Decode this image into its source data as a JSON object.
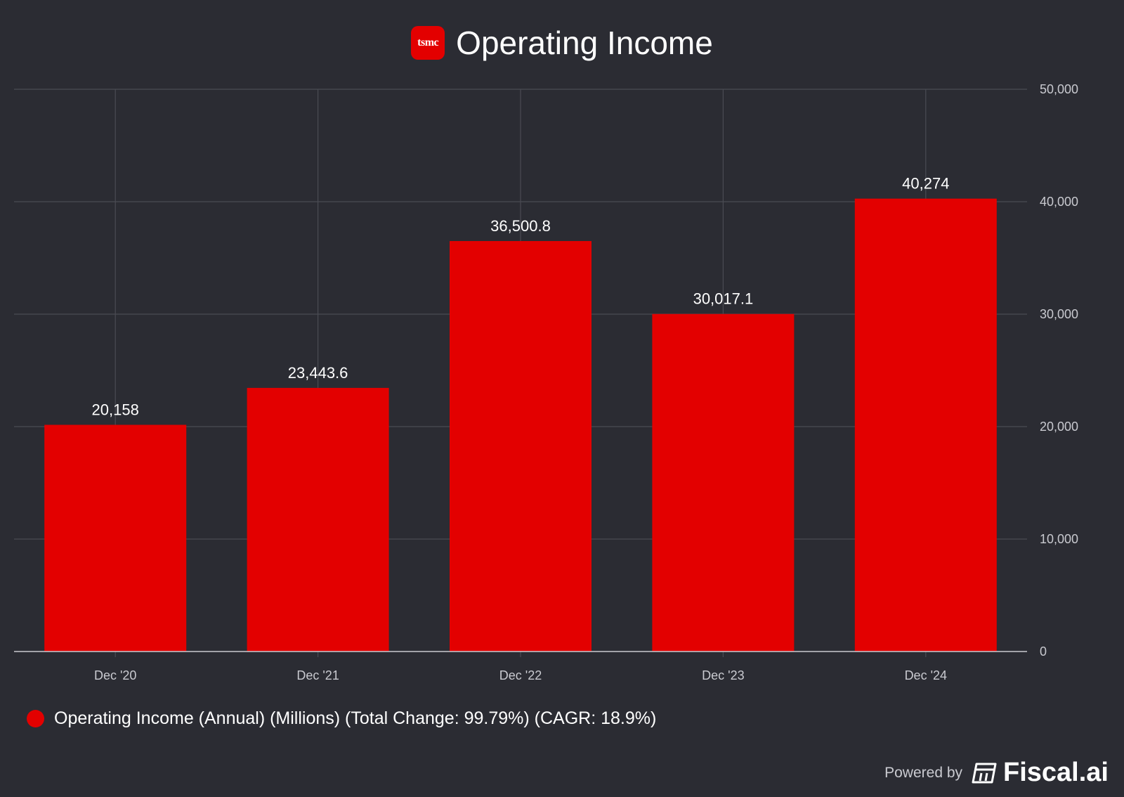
{
  "header": {
    "logo_text": "tsmc",
    "title": "Operating Income"
  },
  "legend": {
    "label": "Operating Income (Annual) (Millions) (Total Change: 99.79%) (CAGR: 18.9%)"
  },
  "footer": {
    "powered_by": "Powered by",
    "brand": "Fiscal.ai",
    "brand_icon": "fiscal-ai-logo-icon"
  },
  "colors": {
    "background": "#2b2c33",
    "bar": "#e30000",
    "grid": "#4a4b53",
    "axis": "#c9cad0",
    "text": "#ffffff",
    "tick_text": "#c9cad0"
  },
  "chart_data": {
    "type": "bar",
    "title": "Operating Income",
    "categories": [
      "Dec '20",
      "Dec '21",
      "Dec '22",
      "Dec '23",
      "Dec '24"
    ],
    "series": [
      {
        "name": "Operating Income (Annual) (Millions) (Total Change: 99.79%) (CAGR: 18.9%)",
        "values": [
          20158,
          23443.6,
          36500.8,
          30017.1,
          40274
        ],
        "labels": [
          "20,158",
          "23,443.6",
          "36,500.8",
          "30,017.1",
          "40,274"
        ]
      }
    ],
    "ylim": [
      0,
      50000
    ],
    "yticks": [
      0,
      10000,
      20000,
      30000,
      40000,
      50000
    ],
    "ytick_labels": [
      "0",
      "10,000",
      "20,000",
      "30,000",
      "40,000",
      "50,000"
    ],
    "y_axis_side": "right",
    "grid": true,
    "legend_position": "bottom-left"
  }
}
